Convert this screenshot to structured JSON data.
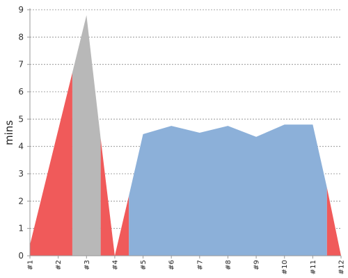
{
  "chart_data": {
    "type": "area",
    "title": "",
    "xlabel": "",
    "ylabel": "mins",
    "x": [
      "#1",
      "#2",
      "#3",
      "#4",
      "#5",
      "#6",
      "#7",
      "#8",
      "#9",
      "#10",
      "#11",
      "#12"
    ],
    "ylim": [
      0,
      9
    ],
    "yticks": [
      0,
      1,
      2,
      3,
      4,
      5,
      6,
      7,
      8,
      9
    ],
    "grid": true,
    "legend": "none",
    "series": [
      {
        "color": "#f05a5a",
        "points": [
          {
            "x": 0,
            "y": 0.4
          },
          {
            "x": 1.5,
            "y": 6.7
          },
          {
            "x": 1.5,
            "y": 0
          },
          {
            "x": 2.5,
            "y": 0
          },
          {
            "x": 2.5,
            "y": 4.3
          },
          {
            "x": 3,
            "y": 0
          },
          {
            "x": 3,
            "y": 0
          },
          {
            "x": 3.5,
            "y": 2.2
          },
          {
            "x": 3.5,
            "y": 0
          },
          {
            "x": 10.5,
            "y": 0
          },
          {
            "x": 10.5,
            "y": 2.5
          },
          {
            "x": 11,
            "y": 0
          }
        ]
      },
      {
        "color": "#b8b8b8",
        "points": [
          {
            "x": 1.5,
            "y": 6.7
          },
          {
            "x": 2,
            "y": 8.8
          },
          {
            "x": 2.5,
            "y": 4.3
          }
        ]
      },
      {
        "color": "#8cb0d9",
        "points": [
          {
            "x": 3.5,
            "y": 2.2
          },
          {
            "x": 4,
            "y": 4.45
          },
          {
            "x": 5,
            "y": 4.75
          },
          {
            "x": 6,
            "y": 4.5
          },
          {
            "x": 7,
            "y": 4.75
          },
          {
            "x": 8,
            "y": 4.35
          },
          {
            "x": 9,
            "y": 4.8
          },
          {
            "x": 10,
            "y": 4.8
          },
          {
            "x": 10.5,
            "y": 2.5
          }
        ]
      }
    ]
  }
}
